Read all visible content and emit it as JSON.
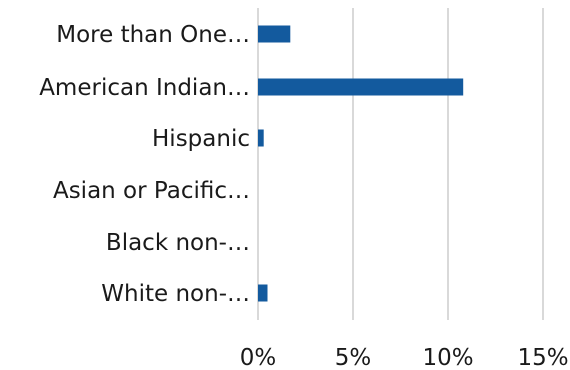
{
  "chart_data": {
    "type": "bar",
    "orientation": "horizontal",
    "categories": [
      "More than One…",
      "American Indian…",
      "Hispanic",
      "Asian or Pacific…",
      "Black non-…",
      "White non-…"
    ],
    "values": [
      1.7,
      10.8,
      0.3,
      0.0,
      0.0,
      0.5
    ],
    "x_ticks": [
      "0%",
      "5%",
      "10%",
      "15%"
    ],
    "xlim": [
      0,
      15
    ],
    "grid": true,
    "legend": "none",
    "bar_color": "#135a9e"
  }
}
